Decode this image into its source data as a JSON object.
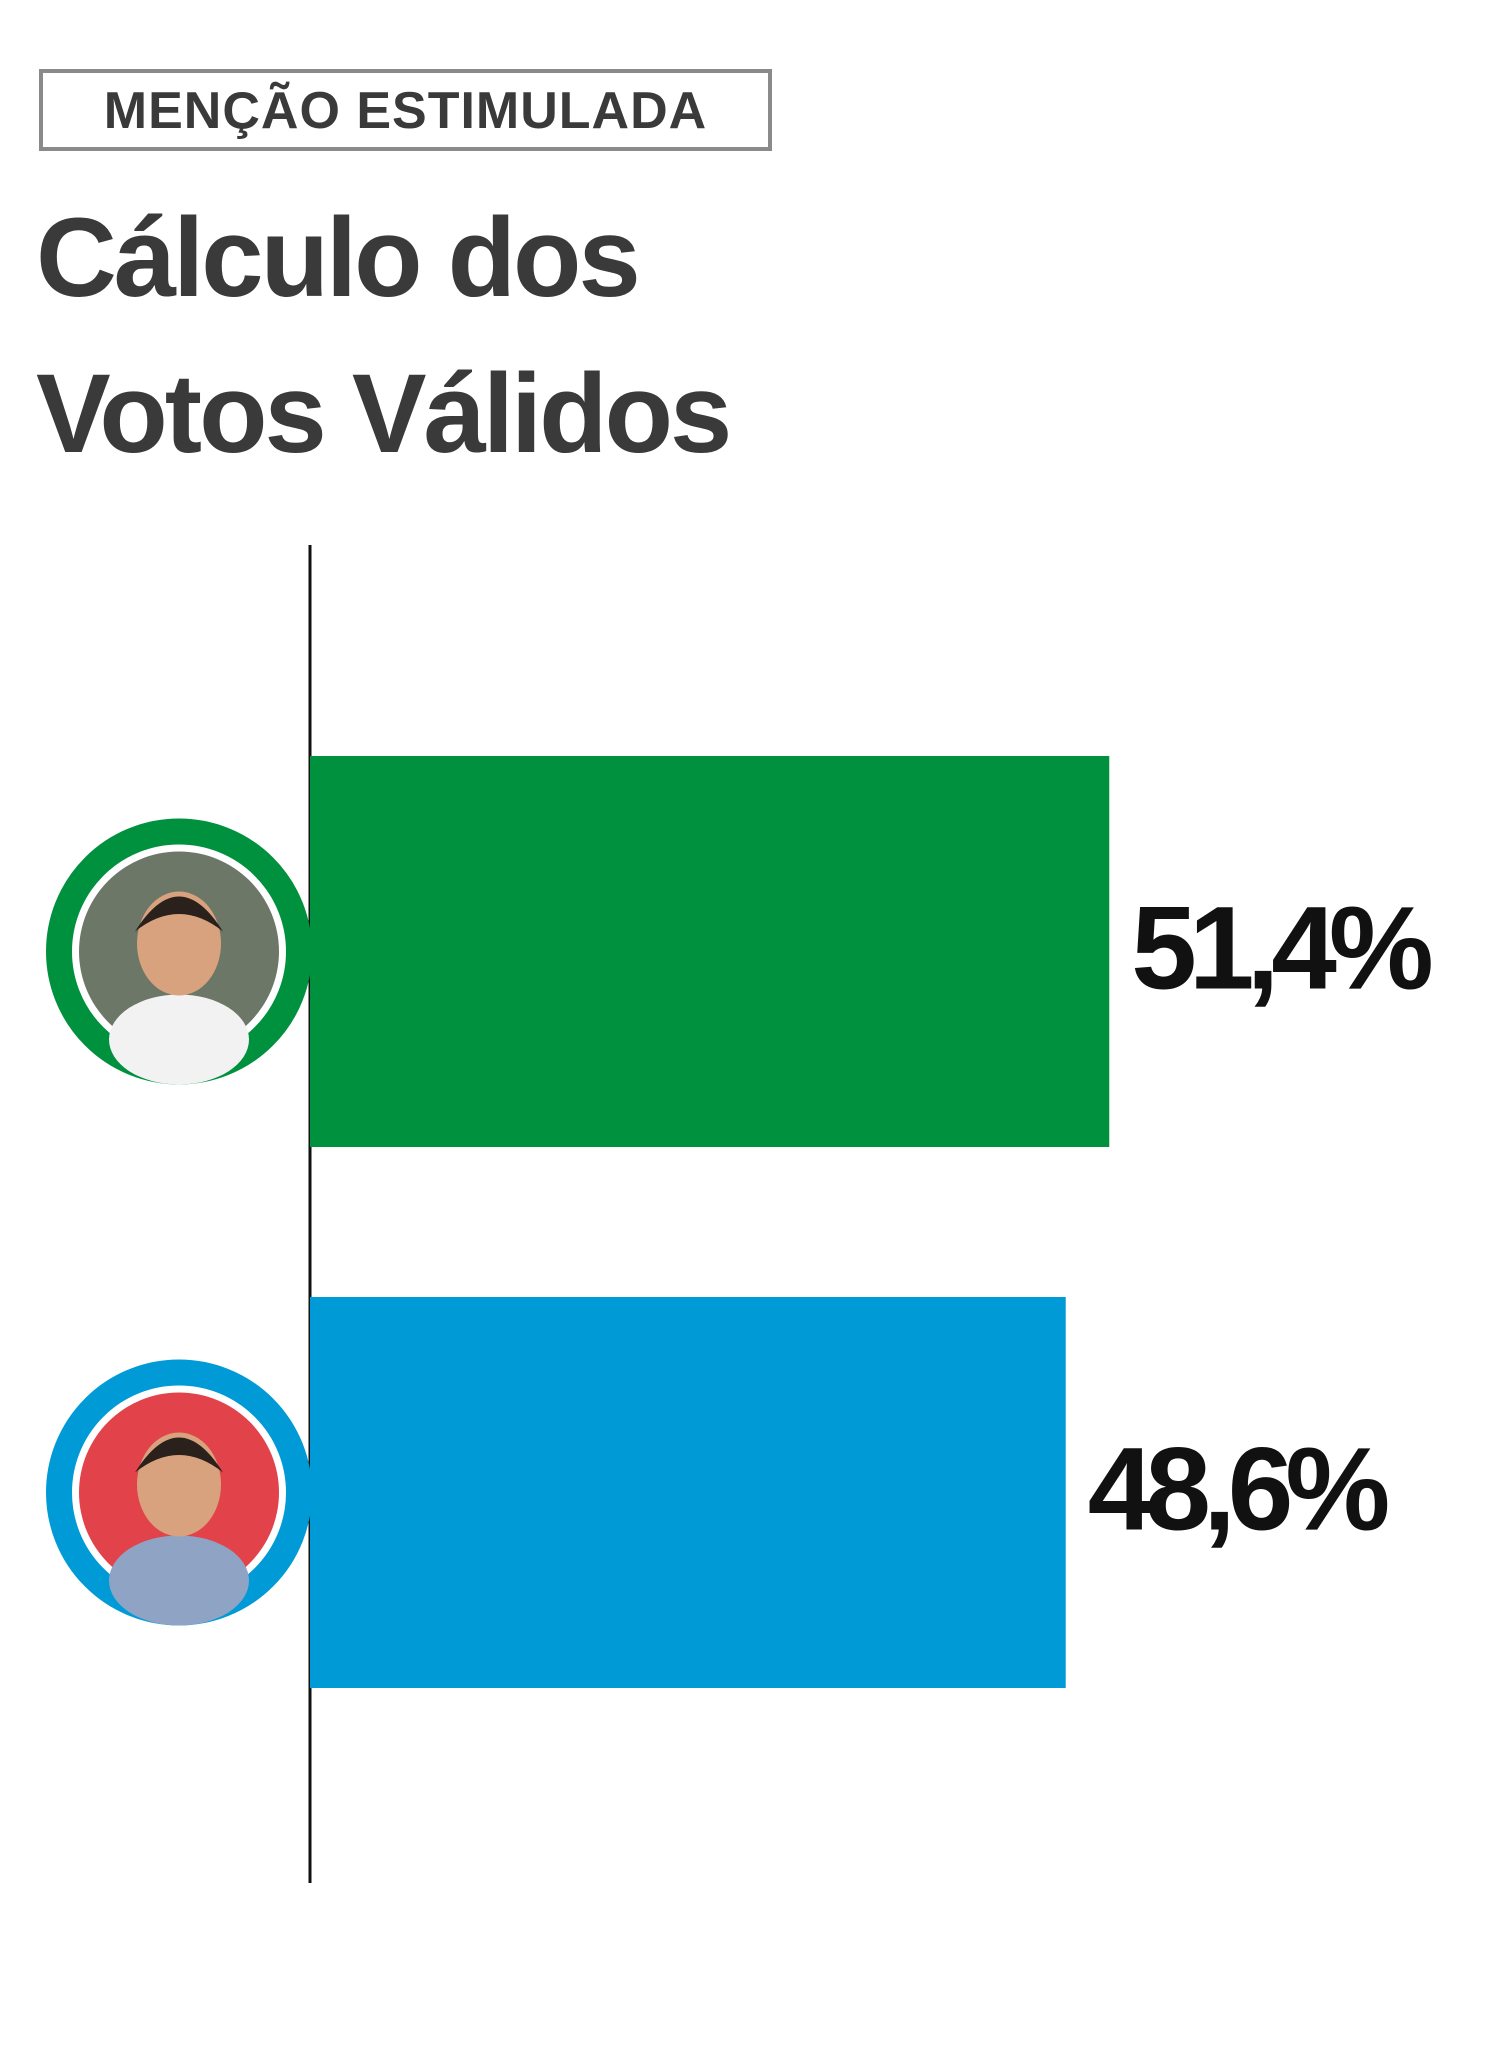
{
  "chart_data": {
    "type": "hbar",
    "tag": "MENÇÃO ESTIMULADA",
    "title": "Cálculo dos Votos Válidos",
    "categories": [
      null,
      null
    ],
    "values": [
      51.4,
      48.6
    ],
    "value_labels": [
      "51,4%",
      "48,6%"
    ],
    "colors": [
      "#00913f",
      "#009bd6"
    ]
  }
}
